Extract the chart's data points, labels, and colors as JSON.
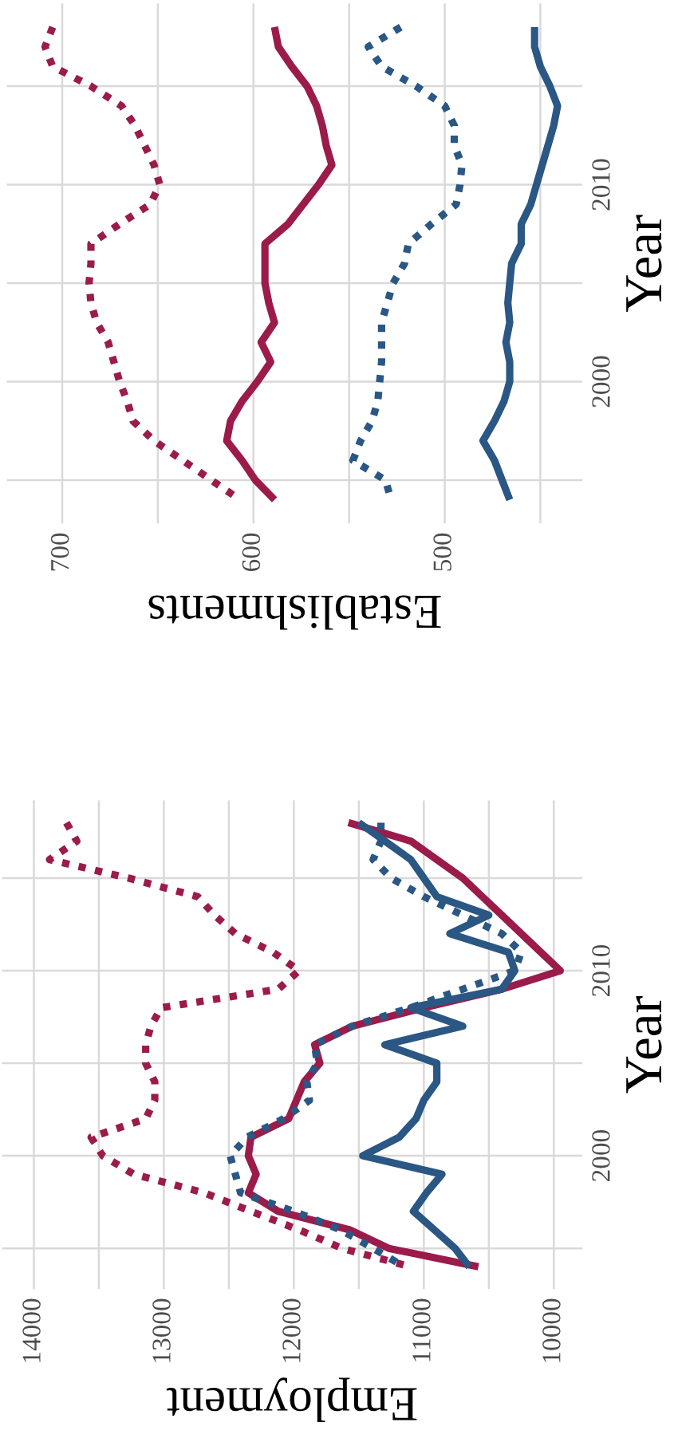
{
  "chart_data": [
    {
      "type": "line",
      "xlabel": "Establishments",
      "ylabel": "Year",
      "series": [
        {
          "color": "#9b1b4b",
          "line_style": "dotted",
          "x": [
            607,
            622,
            637,
            652,
            663,
            666,
            670,
            673,
            676,
            682,
            685,
            686,
            685,
            685,
            670,
            654,
            649,
            652,
            657,
            662,
            669,
            685,
            705,
            709,
            705
          ],
          "values": [
            1994,
            1995,
            1996,
            1997,
            1998,
            1999,
            2000,
            2001,
            2002,
            2003,
            2004,
            2005,
            2006,
            2007,
            2008,
            2009,
            2010,
            2011,
            2012,
            2013,
            2014,
            2015,
            2016,
            2017,
            2018
          ]
        },
        {
          "color": "#9b1b4b",
          "line_style": "solid",
          "x": [
            589,
            599,
            606,
            614,
            612,
            606,
            598,
            591,
            596,
            589,
            592,
            594,
            594,
            594,
            582,
            574,
            566,
            559,
            562,
            564,
            567,
            572,
            580,
            587,
            589
          ],
          "values": [
            1994,
            1995,
            1996,
            1997,
            1998,
            1999,
            2000,
            2001,
            2002,
            2003,
            2004,
            2005,
            2006,
            2007,
            2008,
            2009,
            2010,
            2011,
            2012,
            2013,
            2014,
            2015,
            2016,
            2017,
            2018
          ]
        },
        {
          "color": "#2a5783",
          "line_style": "dotted",
          "x": [
            528,
            531,
            548,
            544,
            538,
            535,
            534,
            533,
            533,
            533,
            530,
            527,
            521,
            519,
            507,
            494,
            492,
            491,
            495,
            495,
            500,
            515,
            533,
            540,
            523
          ],
          "values": [
            1994,
            1995,
            1996,
            1997,
            1998,
            1999,
            2000,
            2001,
            2002,
            2003,
            2004,
            2005,
            2006,
            2007,
            2008,
            2009,
            2010,
            2011,
            2012,
            2013,
            2014,
            2015,
            2016,
            2017,
            2018
          ]
        },
        {
          "color": "#2a5783",
          "line_style": "solid",
          "x": [
            466,
            470,
            474,
            480,
            474,
            469,
            466,
            466,
            468,
            466,
            467,
            466,
            465,
            460,
            460,
            455,
            452,
            449,
            446,
            443,
            441,
            445,
            450,
            453,
            453
          ],
          "values": [
            1994,
            1995,
            1996,
            1997,
            1998,
            1999,
            2000,
            2001,
            2002,
            2003,
            2004,
            2005,
            2006,
            2007,
            2008,
            2009,
            2010,
            2011,
            2012,
            2013,
            2014,
            2015,
            2016,
            2017,
            2018
          ]
        }
      ],
      "xlim": [
        729,
        428
      ],
      "xticks": [
        {
          "value": 450,
          "label": null
        },
        500,
        {
          "value": 550,
          "label": null
        },
        600,
        {
          "value": 650,
          "label": null
        },
        700
      ],
      "ylim": [
        1992.8,
        2019.2
      ],
      "yticks": [
        {
          "value": 1995,
          "label": null
        },
        2000,
        {
          "value": 2005,
          "label": null
        },
        2010,
        {
          "value": 2015,
          "label": null
        }
      ],
      "grid": true
    },
    {
      "type": "line",
      "xlabel": "Employment",
      "ylabel": "Year",
      "series": [
        {
          "color": "#9b1b4b",
          "line_style": "dotted",
          "x": [
            11100,
            11630,
            11960,
            12330,
            12690,
            13230,
            13470,
            13560,
            13140,
            13070,
            13070,
            13140,
            13140,
            13100,
            13020,
            12120,
            11960,
            12160,
            12450,
            12610,
            12740,
            13270,
            13880,
            13670,
            13750
          ],
          "values": [
            1994,
            1995,
            1996,
            1997,
            1998,
            1999,
            2000,
            2001,
            2002,
            2003,
            2004,
            2005,
            2006,
            2007,
            2008,
            2009,
            2010,
            2011,
            2012,
            2013,
            2014,
            2015,
            2016,
            2017,
            2018
          ]
        },
        {
          "color": "#9b1b4b",
          "line_style": "solid",
          "x": [
            10580,
            11270,
            11570,
            12120,
            12350,
            12290,
            12350,
            12330,
            12040,
            11980,
            11920,
            11800,
            11840,
            11550,
            11000,
            10400,
            9950,
            10100,
            10250,
            10400,
            10550,
            10700,
            10900,
            11100,
            11580
          ],
          "values": [
            1994,
            1995,
            1996,
            1997,
            1998,
            1999,
            2000,
            2001,
            2002,
            2003,
            2004,
            2005,
            2006,
            2007,
            2008,
            2009,
            2010,
            2011,
            2012,
            2013,
            2014,
            2015,
            2016,
            2017,
            2018
          ]
        },
        {
          "color": "#2a5783",
          "line_style": "dotted",
          "x": [
            11150,
            11390,
            11640,
            12000,
            12410,
            12450,
            12490,
            12360,
            12080,
            11880,
            11900,
            11820,
            11840,
            11550,
            11100,
            10700,
            10300,
            10250,
            10400,
            10700,
            11000,
            11250,
            11390,
            11330,
            11330
          ],
          "values": [
            1994,
            1995,
            1996,
            1997,
            1998,
            1999,
            2000,
            2001,
            2002,
            2003,
            2004,
            2005,
            2006,
            2007,
            2008,
            2009,
            2010,
            2011,
            2012,
            2013,
            2014,
            2015,
            2016,
            2017,
            2018
          ]
        },
        {
          "color": "#2a5783",
          "line_style": "solid",
          "x": [
            10650,
            10760,
            10920,
            11080,
            10980,
            10860,
            11470,
            11190,
            11060,
            11000,
            10900,
            10900,
            11300,
            10700,
            11100,
            10400,
            10300,
            10350,
            10800,
            10500,
            10900,
            11000,
            11100,
            11300,
            11500
          ],
          "values": [
            1994,
            1995,
            1996,
            1997,
            1998,
            1999,
            2000,
            2001,
            2002,
            2003,
            2004,
            2005,
            2006,
            2007,
            2008,
            2009,
            2010,
            2011,
            2012,
            2013,
            2014,
            2015,
            2016,
            2017,
            2018
          ]
        }
      ],
      "xlim": [
        14245,
        9780
      ],
      "xticks": [
        10000,
        {
          "value": 10500,
          "label": null
        },
        11000,
        {
          "value": 11500,
          "label": null
        },
        12000,
        {
          "value": 12500,
          "label": null
        },
        13000,
        {
          "value": 13500,
          "label": null
        },
        14000
      ],
      "ylim": [
        1992.8,
        2019.2
      ],
      "yticks": [
        {
          "value": 1995,
          "label": null
        },
        2000,
        {
          "value": 2005,
          "label": null
        },
        2010,
        {
          "value": 2015,
          "label": null
        }
      ],
      "grid": true
    }
  ]
}
